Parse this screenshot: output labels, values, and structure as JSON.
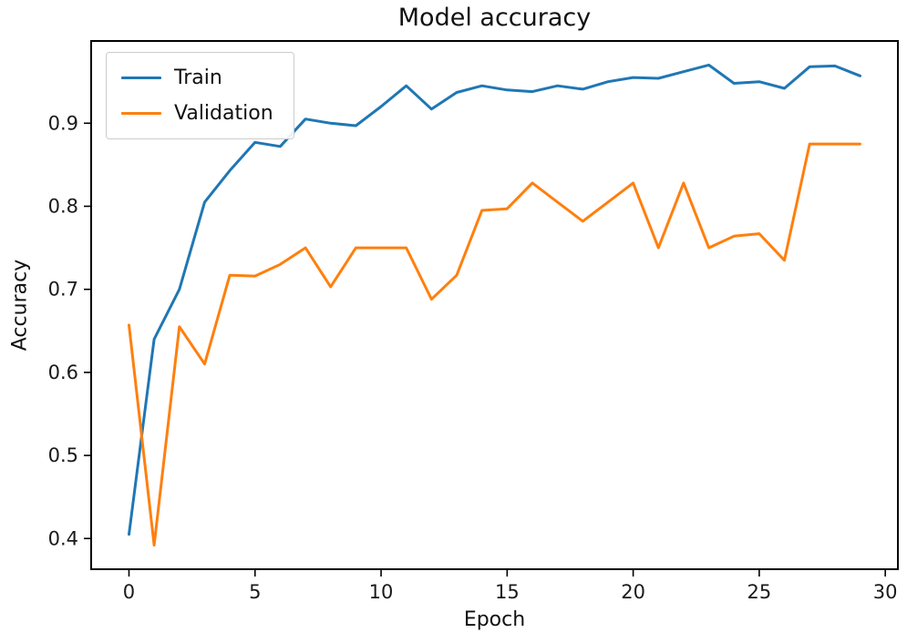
{
  "figure": {
    "title": "Model accuracy"
  },
  "chart_data": {
    "type": "line",
    "title": "Model accuracy",
    "xlabel": "Epoch",
    "ylabel": "Accuracy",
    "x": [
      0,
      1,
      2,
      3,
      4,
      5,
      6,
      7,
      8,
      9,
      10,
      11,
      12,
      13,
      14,
      15,
      16,
      17,
      18,
      19,
      20,
      21,
      22,
      23,
      24,
      25,
      26,
      27,
      28,
      29
    ],
    "series": [
      {
        "name": "Train",
        "color": "#1f77b4",
        "values": [
          0.405,
          0.64,
          0.7,
          0.805,
          0.843,
          0.877,
          0.872,
          0.905,
          0.9,
          0.897,
          0.92,
          0.945,
          0.917,
          0.937,
          0.945,
          0.94,
          0.938,
          0.945,
          0.941,
          0.95,
          0.955,
          0.954,
          0.962,
          0.97,
          0.948,
          0.95,
          0.942,
          0.968,
          0.969,
          0.957
        ]
      },
      {
        "name": "Validation",
        "color": "#ff7f0e",
        "values": [
          0.657,
          0.392,
          0.655,
          0.61,
          0.717,
          0.716,
          0.73,
          0.75,
          0.703,
          0.75,
          0.75,
          0.75,
          0.688,
          0.717,
          0.795,
          0.797,
          0.828,
          0.805,
          0.782,
          0.805,
          0.828,
          0.75,
          0.828,
          0.75,
          0.764,
          0.767,
          0.735,
          0.875,
          0.875,
          0.875
        ]
      }
    ],
    "xlim": [
      -1.5,
      30.5
    ],
    "ylim": [
      0.363,
      0.999
    ],
    "xticks": [
      0,
      5,
      10,
      15,
      20,
      25,
      30
    ],
    "xtick_labels": [
      "0",
      "5",
      "10",
      "15",
      "20",
      "25",
      "30"
    ],
    "yticks": [
      0.4,
      0.5,
      0.6,
      0.7,
      0.8,
      0.9
    ],
    "ytick_labels": [
      "0.4",
      "0.5",
      "0.6",
      "0.7",
      "0.8",
      "0.9"
    ],
    "legend_position": "upper left",
    "grid": false,
    "axis_color": "#000000",
    "tick_label_color": "#1a1a1a"
  }
}
